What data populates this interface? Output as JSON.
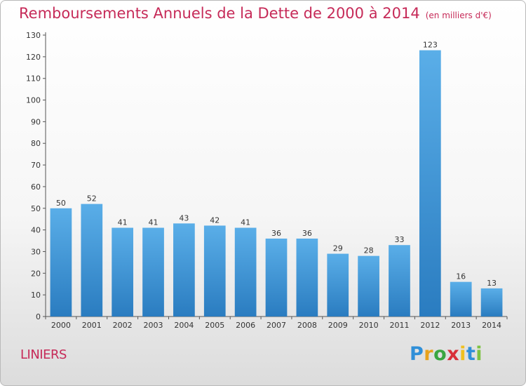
{
  "chart_data": {
    "type": "bar",
    "title": "Remboursements Annuels de la Dette de 2000 à 2014",
    "subtitle": "(en milliers d'€)",
    "categories": [
      "2000",
      "2001",
      "2002",
      "2003",
      "2004",
      "2005",
      "2006",
      "2007",
      "2008",
      "2009",
      "2010",
      "2011",
      "2012",
      "2013",
      "2014"
    ],
    "values": [
      50,
      52,
      41,
      41,
      43,
      42,
      41,
      36,
      36,
      29,
      28,
      33,
      123,
      16,
      13
    ],
    "ylim": [
      0,
      130
    ],
    "yticks": [
      0,
      10,
      20,
      30,
      40,
      50,
      60,
      70,
      80,
      90,
      100,
      110,
      120,
      130
    ],
    "xlabel": "",
    "ylabel": "",
    "grid": false,
    "bar_color_top": "#5aaee8",
    "bar_color_bottom": "#2a7cc0"
  },
  "footer": {
    "commune": "LINIERS",
    "logo": {
      "letters": [
        "P",
        "r",
        "o",
        "x",
        "i",
        "t",
        "i"
      ],
      "colors": [
        "#2f8fd8",
        "#e8a21c",
        "#3aa640",
        "#d8303a",
        "#f0c020",
        "#2f8fd8",
        "#7cc242"
      ]
    }
  }
}
